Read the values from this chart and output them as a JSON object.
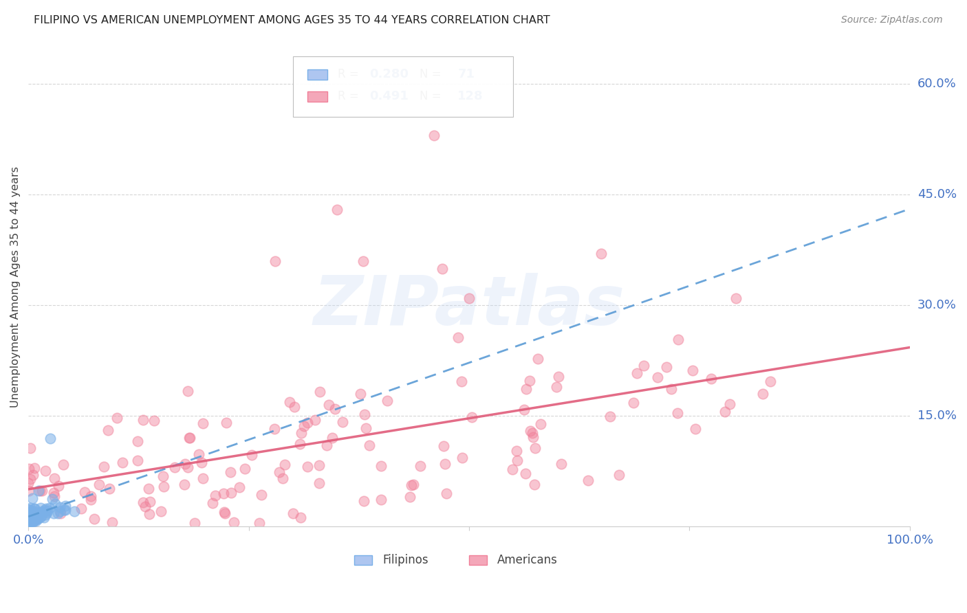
{
  "title": "FILIPINO VS AMERICAN UNEMPLOYMENT AMONG AGES 35 TO 44 YEARS CORRELATION CHART",
  "source": "Source: ZipAtlas.com",
  "ylabel_label": "Unemployment Among Ages 35 to 44 years",
  "background_color": "#ffffff",
  "grid_color": "#cccccc",
  "watermark": "ZIPatlas",
  "title_color": "#222222",
  "axis_label_color": "#4472c4",
  "filipino_scatter_color": "#7ab0e8",
  "american_scatter_color": "#f08099",
  "filipino_line_color": "#5b9bd5",
  "american_line_color": "#e05c7a",
  "filipino_R": 0.28,
  "filipino_N": 71,
  "american_R": 0.491,
  "american_N": 128,
  "xlim": [
    0.0,
    1.0
  ],
  "ylim": [
    0.0,
    0.65
  ],
  "ytick_vals": [
    0.15,
    0.3,
    0.45,
    0.6
  ],
  "ytick_labels": [
    "15.0%",
    "30.0%",
    "45.0%",
    "60.0%"
  ],
  "xtick_labels_show": [
    "0.0%",
    "100.0%"
  ]
}
